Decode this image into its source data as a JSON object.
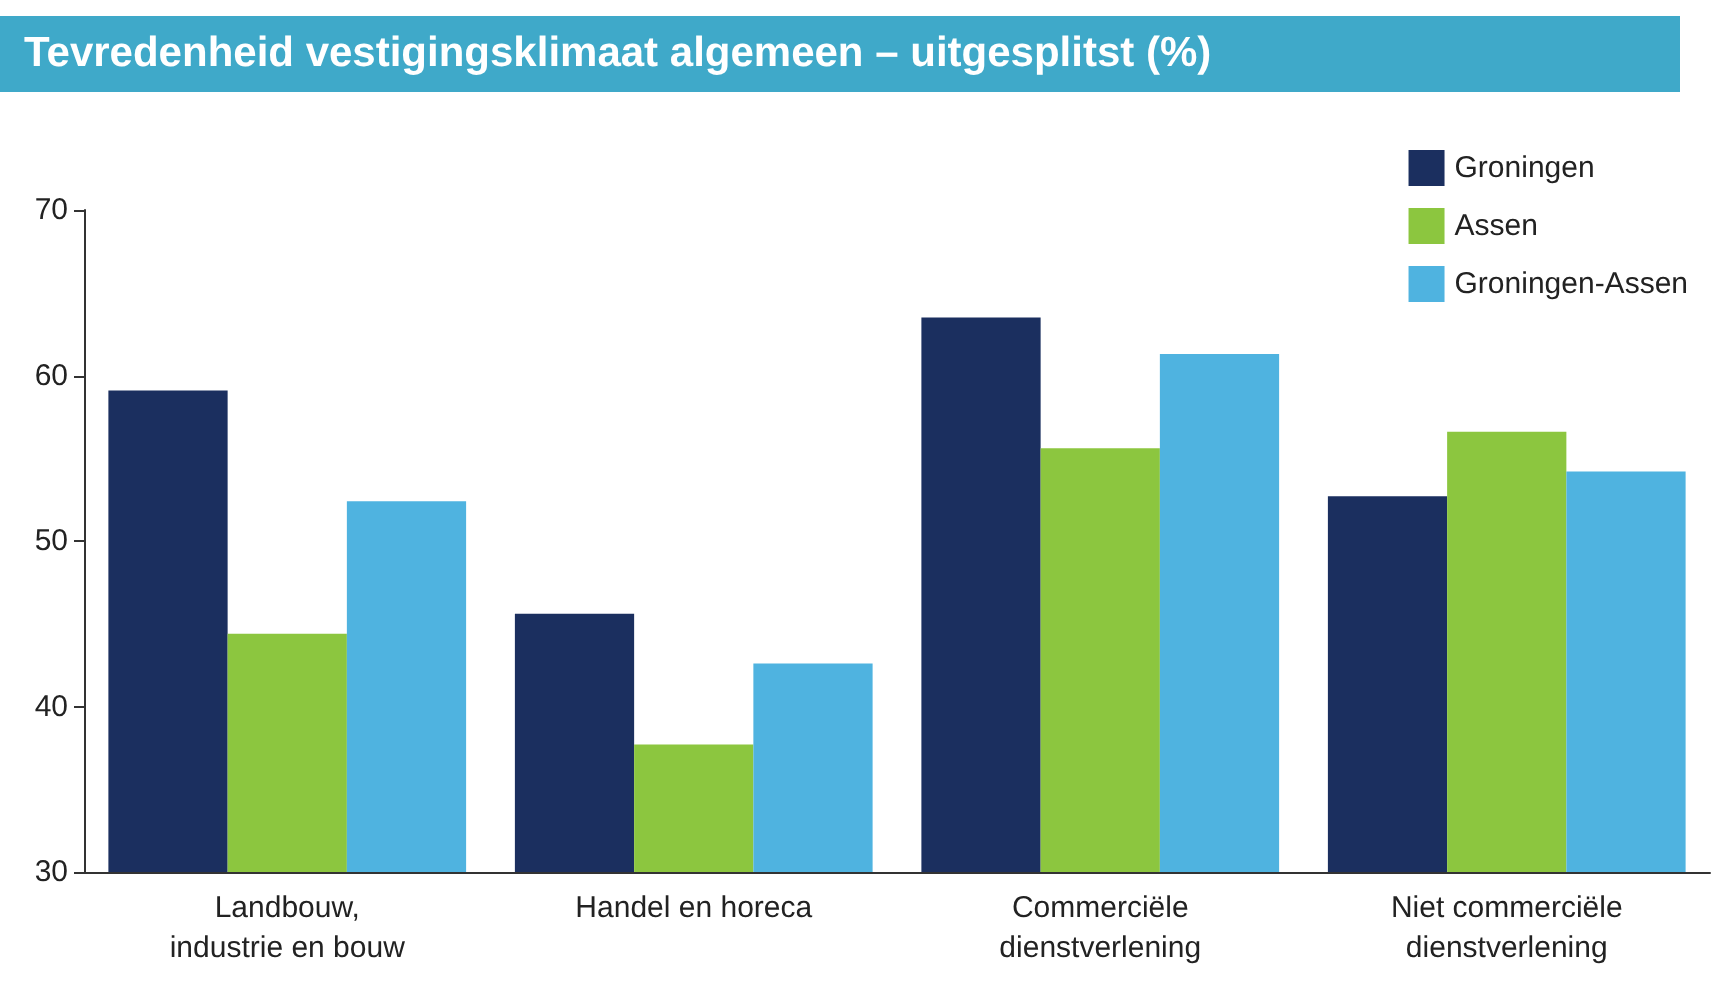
{
  "chart_data": {
    "type": "bar",
    "title": "Tevredenheid vestigingsklimaat algemeen – uitgesplitst (%)",
    "categories": [
      "Landbouw,\nindustrie en bouw",
      "Handel en horeca",
      "Commerciële\ndienstverlening",
      "Niet commerciële\ndienstverlening"
    ],
    "series": [
      {
        "name": "Groningen",
        "color": "#1b2f5f",
        "values": [
          59.1,
          45.6,
          63.5,
          52.7
        ]
      },
      {
        "name": "Assen",
        "color": "#8cc63f",
        "values": [
          44.4,
          37.7,
          55.6,
          56.6
        ]
      },
      {
        "name": "Groningen-Assen",
        "color": "#4fb3e0",
        "values": [
          52.4,
          42.6,
          61.3,
          54.2
        ]
      }
    ],
    "ylim": [
      30,
      70
    ],
    "yticks": [
      30,
      40,
      50,
      60,
      70
    ],
    "grid": false,
    "legend": "top right"
  }
}
